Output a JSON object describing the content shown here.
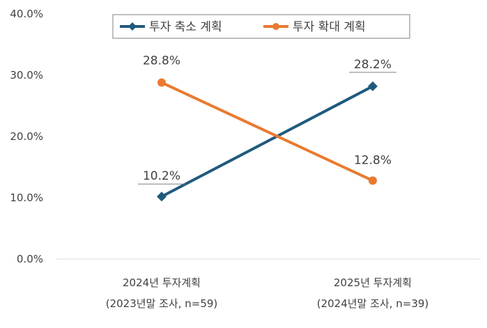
{
  "chart_data": {
    "type": "line",
    "categories": [
      [
        "2024년 투자계획",
        "(2023년말 조사, n=59)"
      ],
      [
        "2025년 투자계획",
        "(2024년말 조사, n=39)"
      ]
    ],
    "series": [
      {
        "name": "투자 축소 계획",
        "values": [
          10.2,
          28.2
        ],
        "labels": [
          "10.2%",
          "28.2%"
        ],
        "color": "#1f5a7e",
        "marker": "diamond"
      },
      {
        "name": "투자 확대 계획",
        "values": [
          28.8,
          12.8
        ],
        "labels": [
          "28.8%",
          "12.8%"
        ],
        "color": "#e97a30",
        "marker": "circle"
      }
    ],
    "y_ticks": [
      "0.0%",
      "10.0%",
      "20.0%",
      "30.0%",
      "40.0%"
    ],
    "ylim": [
      0,
      40
    ],
    "grid": false,
    "legend_position": "top"
  }
}
